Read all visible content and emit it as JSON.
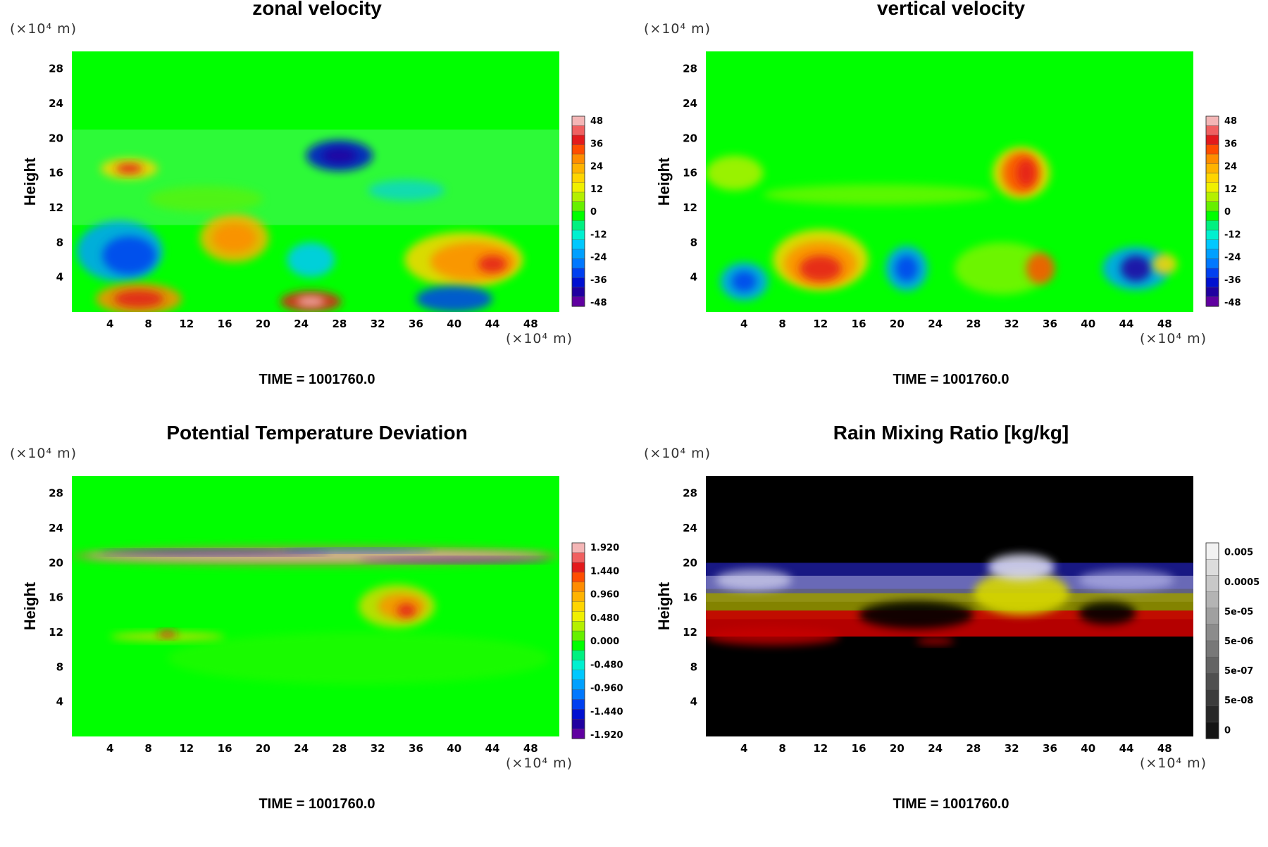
{
  "chart_data": [
    {
      "type": "heatmap",
      "title": "zonal velocity",
      "ylabel": "Height",
      "unit_top": "(×10⁴ m)",
      "unit_bottom": "(×10⁴ m)",
      "x_ticks": [
        "4",
        "8",
        "12",
        "16",
        "20",
        "24",
        "28",
        "32",
        "36",
        "40",
        "44",
        "48"
      ],
      "y_ticks": [
        "4",
        "8",
        "12",
        "16",
        "20",
        "24",
        "28"
      ],
      "xlim": [
        0,
        51
      ],
      "ylim": [
        0,
        30
      ],
      "colorbar": {
        "labels": [
          "48",
          "36",
          "24",
          "12",
          "0",
          "-12",
          "-24",
          "-36",
          "-48"
        ],
        "colors": [
          "#f4b6b6",
          "#f06060",
          "#e31a1c",
          "#ff4d00",
          "#ff8c00",
          "#ffb300",
          "#ffd500",
          "#f0f000",
          "#b4f000",
          "#66f000",
          "#00ff00",
          "#00f080",
          "#00f0d0",
          "#00c8ff",
          "#00a0ff",
          "#0078ff",
          "#0040f0",
          "#0010d0",
          "#2000a0",
          "#6000a0"
        ]
      },
      "background_color": "#00ff00",
      "time": "TIME = 1001760.0"
    },
    {
      "type": "heatmap",
      "title": "vertical velocity",
      "ylabel": "Height",
      "unit_top": "(×10⁴ m)",
      "unit_bottom": "(×10⁴ m)",
      "x_ticks": [
        "4",
        "8",
        "12",
        "16",
        "20",
        "24",
        "28",
        "32",
        "36",
        "40",
        "44",
        "48"
      ],
      "y_ticks": [
        "4",
        "8",
        "12",
        "16",
        "20",
        "24",
        "28"
      ],
      "xlim": [
        0,
        51
      ],
      "ylim": [
        0,
        30
      ],
      "colorbar": {
        "labels": [
          "48",
          "36",
          "24",
          "12",
          "0",
          "-12",
          "-24",
          "-36",
          "-48"
        ],
        "colors": [
          "#f4b6b6",
          "#f06060",
          "#e31a1c",
          "#ff4d00",
          "#ff8c00",
          "#ffb300",
          "#ffd500",
          "#f0f000",
          "#b4f000",
          "#66f000",
          "#00ff00",
          "#00f080",
          "#00f0d0",
          "#00c8ff",
          "#00a0ff",
          "#0078ff",
          "#0040f0",
          "#0010d0",
          "#2000a0",
          "#6000a0"
        ]
      },
      "background_color": "#00ff00",
      "time": "TIME = 1001760.0"
    },
    {
      "type": "heatmap",
      "title": "Potential Temperature Deviation",
      "ylabel": "Height",
      "unit_top": "(×10⁴ m)",
      "unit_bottom": "(×10⁴ m)",
      "x_ticks": [
        "4",
        "8",
        "12",
        "16",
        "20",
        "24",
        "28",
        "32",
        "36",
        "40",
        "44",
        "48"
      ],
      "y_ticks": [
        "4",
        "8",
        "12",
        "16",
        "20",
        "24",
        "28"
      ],
      "xlim": [
        0,
        51
      ],
      "ylim": [
        0,
        30
      ],
      "colorbar": {
        "labels": [
          "1.920",
          "1.440",
          "0.960",
          "0.480",
          "0.000",
          "-0.480",
          "-0.960",
          "-1.440",
          "-1.920"
        ],
        "colors": [
          "#f4b6b6",
          "#f06060",
          "#e31a1c",
          "#ff4d00",
          "#ff8c00",
          "#ffb300",
          "#ffd500",
          "#f0f000",
          "#b4f000",
          "#66f000",
          "#00ff00",
          "#00f080",
          "#00f0d0",
          "#00c8ff",
          "#00a0ff",
          "#0078ff",
          "#0040f0",
          "#0010d0",
          "#2000a0",
          "#6000a0"
        ]
      },
      "background_color": "#00ff00",
      "time": "TIME = 1001760.0"
    },
    {
      "type": "heatmap",
      "title": "Rain Mixing Ratio [kg/kg]",
      "ylabel": "Height",
      "unit_top": "(×10⁴ m)",
      "unit_bottom": "(×10⁴ m)",
      "x_ticks": [
        "4",
        "8",
        "12",
        "16",
        "20",
        "24",
        "28",
        "32",
        "36",
        "40",
        "44",
        "48"
      ],
      "y_ticks": [
        "4",
        "8",
        "12",
        "16",
        "20",
        "24",
        "28"
      ],
      "xlim": [
        0,
        51
      ],
      "ylim": [
        0,
        30
      ],
      "colorbar": {
        "labels": [
          "0.005",
          "0.0005",
          "5e-05",
          "5e-06",
          "5e-07",
          "5e-08",
          "0"
        ],
        "colors": [
          "#f2f2f2",
          "#dcdcdc",
          "#c8c8c8",
          "#b4b4b4",
          "#a0a0a0",
          "#8c8c8c",
          "#787878",
          "#646464",
          "#505050",
          "#3c3c3c",
          "#282828",
          "#141414"
        ]
      },
      "background_color": "#000000",
      "time": "TIME = 1001760.0"
    }
  ]
}
